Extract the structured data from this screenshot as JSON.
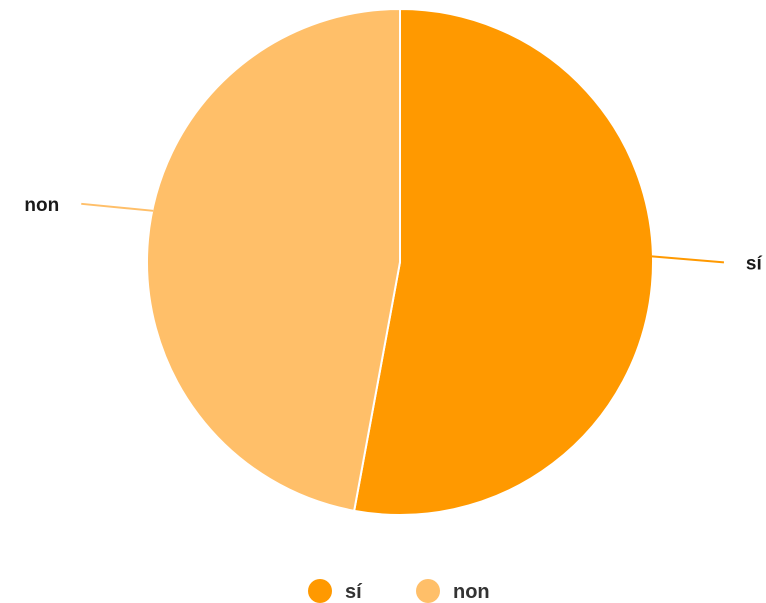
{
  "chart_data": {
    "type": "pie",
    "title": "",
    "slices": [
      {
        "label": "sí",
        "value": 52.9,
        "color": "#FF9900"
      },
      {
        "label": "non",
        "value": 47.1,
        "color": "#FFBF69"
      }
    ],
    "legend": {
      "position": "bottom"
    },
    "slice_labels": "outside"
  }
}
